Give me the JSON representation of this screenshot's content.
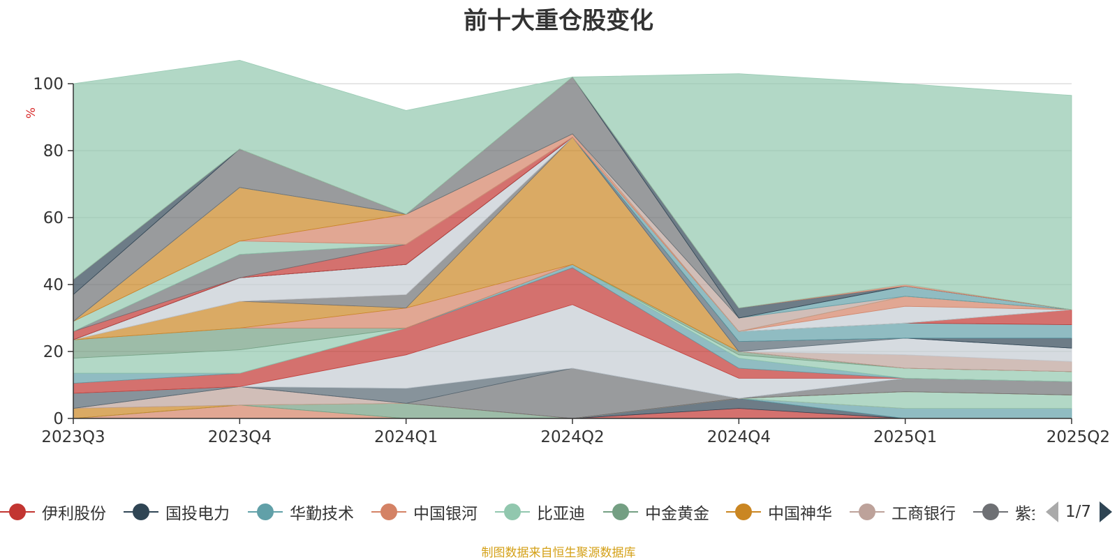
{
  "title": "前十大重仓股变化",
  "source_note": "制图数据来自恒生聚源数据库",
  "legend_page": "1/7",
  "chart_data": {
    "type": "area",
    "stacked": true,
    "title": "前十大重仓股变化",
    "ylabel": "%",
    "ylim": [
      0,
      100
    ],
    "y_ticks": [
      0,
      20,
      40,
      60,
      80,
      100
    ],
    "grid": true,
    "legend_position": "bottom",
    "categories": [
      "2023Q3",
      "2023Q4",
      "2024Q1",
      "2024Q2",
      "2024Q4",
      "2025Q1",
      "2025Q2"
    ],
    "series": [
      {
        "color": "#c23531",
        "values": [
          0,
          0,
          0,
          0,
          3,
          0,
          0
        ]
      },
      {
        "color": "#2f4554",
        "values": [
          0,
          0,
          0,
          0,
          3,
          0,
          0
        ]
      },
      {
        "color": "#61a0a8",
        "values": [
          0,
          0,
          0,
          0,
          0,
          3,
          3
        ]
      },
      {
        "color": "#d48265",
        "values": [
          0,
          4,
          0,
          0,
          0,
          0,
          0
        ]
      },
      {
        "color": "#91c7ae",
        "values": [
          0,
          0,
          0,
          0,
          0,
          5,
          4
        ]
      },
      {
        "color": "#749f83",
        "values": [
          0,
          0,
          4.5,
          0,
          0,
          0,
          0
        ]
      },
      {
        "color": "#ca8622",
        "values": [
          3,
          0,
          0,
          0,
          0,
          0,
          0
        ]
      },
      {
        "color": "#bda29a",
        "values": [
          0,
          5.5,
          0,
          0,
          0,
          0,
          0
        ]
      },
      {
        "color": "#6e7074",
        "values": [
          0,
          0,
          0,
          15,
          0,
          4,
          4
        ]
      },
      {
        "color": "#546570",
        "values": [
          4.5,
          0,
          4.5,
          0,
          0,
          0,
          0
        ]
      },
      {
        "color": "#c4ccd3",
        "values": [
          0,
          0,
          10,
          19,
          6,
          0,
          0
        ]
      },
      {
        "color": "#c23531",
        "values": [
          3,
          4,
          8,
          11,
          3,
          0,
          0
        ]
      },
      {
        "color": "#61a0a8",
        "values": [
          3,
          0,
          0,
          1,
          3,
          0,
          0
        ]
      },
      {
        "color": "#91c7ae",
        "values": [
          4.5,
          7,
          0,
          0,
          1,
          3,
          3
        ]
      },
      {
        "color": "#749f83",
        "values": [
          5.5,
          6.5,
          0,
          0,
          1,
          0,
          0
        ]
      },
      {
        "color": "#d48265",
        "values": [
          0,
          0,
          6,
          0,
          0,
          0,
          0
        ]
      },
      {
        "color": "#ca8622",
        "values": [
          0,
          8,
          0,
          38,
          0,
          0,
          0
        ]
      },
      {
        "color": "#6e7074",
        "values": [
          0,
          0,
          4,
          0,
          0,
          0,
          0
        ]
      },
      {
        "color": "#bda29a",
        "values": [
          0,
          0,
          0,
          0,
          0,
          4,
          3
        ]
      },
      {
        "color": "#c4ccd3",
        "values": [
          0,
          7,
          9,
          0,
          0,
          5,
          4
        ]
      },
      {
        "color": "#546570",
        "values": [
          0,
          0,
          0,
          0,
          3,
          0,
          0
        ]
      },
      {
        "color": "#2f4554",
        "values": [
          0,
          0,
          0,
          0,
          0,
          0,
          3
        ]
      },
      {
        "color": "#61a0a8",
        "values": [
          0,
          0,
          0,
          0,
          3,
          4.5,
          4
        ]
      },
      {
        "color": "#c23531",
        "values": [
          2.5,
          0,
          6,
          0,
          0,
          0,
          4.5
        ]
      },
      {
        "color": "#6e7074",
        "values": [
          0,
          7,
          0,
          0,
          0,
          0,
          0
        ]
      },
      {
        "color": "#91c7ae",
        "values": [
          3,
          4,
          0,
          0,
          0,
          0,
          0
        ]
      },
      {
        "color": "#c4ccd3",
        "values": [
          0,
          0,
          0,
          0,
          0,
          5,
          0
        ]
      },
      {
        "color": "#d48265",
        "values": [
          0,
          0,
          9,
          1,
          0,
          3,
          0
        ]
      },
      {
        "color": "#ca8622",
        "values": [
          0,
          16,
          0,
          0,
          0,
          0,
          0
        ]
      },
      {
        "color": "#bda29a",
        "values": [
          0,
          0,
          0,
          0,
          4,
          0,
          0
        ]
      },
      {
        "color": "#61a0a8",
        "values": [
          0,
          0,
          0,
          0,
          0,
          3,
          0
        ]
      },
      {
        "color": "#6e7074",
        "values": [
          8,
          11.5,
          0,
          17,
          0,
          0,
          0
        ]
      },
      {
        "color": "#2f4554",
        "values": [
          4.5,
          0,
          0,
          0,
          3,
          0,
          0
        ]
      },
      {
        "color": "#d48265",
        "values": [
          0,
          0,
          0,
          0,
          0,
          0.5,
          0
        ]
      },
      {
        "color": "#91c7ae",
        "values": [
          58.5,
          26.5,
          31,
          0,
          70,
          60,
          64
        ]
      }
    ],
    "legend": [
      {
        "label": "伊利股份",
        "color": "#c23531"
      },
      {
        "label": "国投电力",
        "color": "#2f4554"
      },
      {
        "label": "华勤技术",
        "color": "#61a0a8"
      },
      {
        "label": "中国银河",
        "color": "#d48265"
      },
      {
        "label": "比亚迪",
        "color": "#91c7ae"
      },
      {
        "label": "中金黄金",
        "color": "#749f83"
      },
      {
        "label": "中国神华",
        "color": "#ca8622"
      },
      {
        "label": "工商银行",
        "color": "#bda29a"
      },
      {
        "label": "紫金矿业",
        "color": "#6e7074"
      }
    ]
  }
}
